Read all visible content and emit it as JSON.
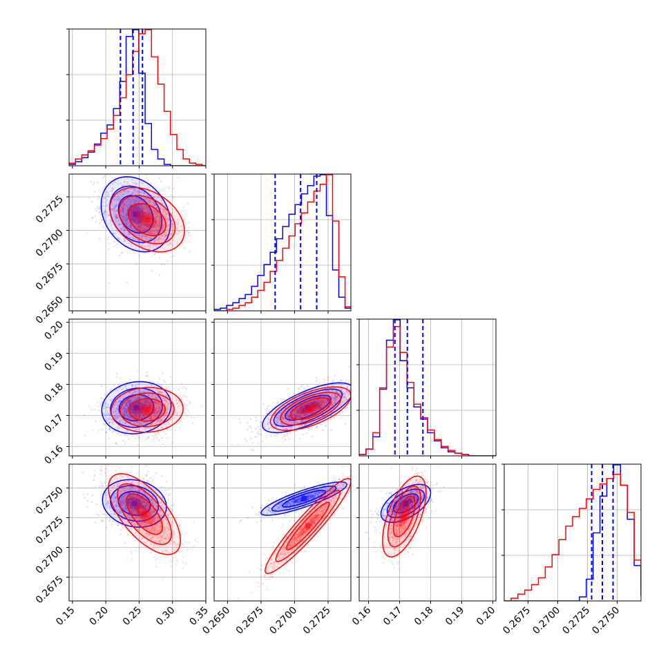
{
  "chart_data": {
    "type": "corner",
    "colors": {
      "blue": "#0000ff",
      "red": "#ff0000",
      "grid": "#b0b0b0"
    },
    "series": [
      {
        "color": "blue"
      },
      {
        "color": "red"
      }
    ],
    "params": [
      {
        "range": [
          0.145,
          0.35
        ],
        "ticks": [
          "0.15",
          "0.20",
          "0.25",
          "0.30",
          "0.35"
        ],
        "tick_values": [
          0.15,
          0.2,
          0.25,
          0.3,
          0.35
        ]
      },
      {
        "range": [
          0.264,
          0.2742
        ],
        "ticks": [
          "0.2650",
          "0.2675",
          "0.2700",
          "0.2725"
        ],
        "tick_values": [
          0.265,
          0.2675,
          0.27,
          0.2725
        ]
      },
      {
        "range": [
          0.157,
          0.201
        ],
        "ticks": [
          "0.16",
          "0.17",
          "0.18",
          "0.19",
          "0.20"
        ],
        "tick_values": [
          0.16,
          0.17,
          0.18,
          0.19,
          0.2
        ]
      },
      {
        "range": [
          0.2655,
          0.277
        ],
        "ticks": [
          "0.2675",
          "0.2700",
          "0.2725",
          "0.2750"
        ],
        "tick_values": [
          0.2675,
          0.27,
          0.2725,
          0.275
        ]
      }
    ],
    "marginals": [
      {
        "blue": {
          "edges_start": 0.145,
          "bin_width": 0.0095,
          "values": [
            0.01,
            0.03,
            0.06,
            0.1,
            0.16,
            0.24,
            0.3,
            0.42,
            0.62,
            0.95,
            1.0,
            0.68,
            0.31,
            0.12,
            0.05,
            0.01,
            0,
            0,
            0,
            0,
            0,
            0
          ]
        },
        "red": {
          "edges_start": 0.145,
          "bin_width": 0.0095,
          "values": [
            0.02,
            0.05,
            0.08,
            0.11,
            0.15,
            0.2,
            0.27,
            0.37,
            0.5,
            0.67,
            0.84,
            0.97,
            1.0,
            0.8,
            0.6,
            0.4,
            0.23,
            0.12,
            0.05,
            0.02,
            0.01,
            0
          ]
        },
        "quantile_lines": [
          0.222,
          0.241,
          0.255
        ]
      },
      {
        "blue": {
          "edges_start": 0.264,
          "bin_width": 0.000465,
          "values": [
            0.01,
            0.02,
            0.04,
            0.06,
            0.09,
            0.12,
            0.18,
            0.26,
            0.34,
            0.43,
            0.53,
            0.62,
            0.71,
            0.78,
            0.86,
            0.92,
            0.99,
            1.0,
            0.7,
            0.3,
            0.1,
            0.02
          ]
        },
        "red": {
          "edges_start": 0.264,
          "bin_width": 0.000465,
          "values": [
            0,
            0,
            0.01,
            0.02,
            0.04,
            0.06,
            0.1,
            0.15,
            0.21,
            0.29,
            0.37,
            0.46,
            0.55,
            0.64,
            0.72,
            0.8,
            0.88,
            0.93,
            1.0,
            0.66,
            0.25,
            0.03
          ]
        },
        "quantile_lines": [
          0.26855,
          0.27045,
          0.27165
        ]
      },
      {
        "blue": {
          "edges_start": 0.157,
          "bin_width": 0.0022,
          "values": [
            0.01,
            0.05,
            0.14,
            0.49,
            0.85,
            1.0,
            0.7,
            0.5,
            0.36,
            0.27,
            0.17,
            0.11,
            0.06,
            0.03,
            0.02,
            0.01,
            0,
            0,
            0,
            0
          ]
        },
        "red": {
          "edges_start": 0.157,
          "bin_width": 0.0022,
          "values": [
            0.01,
            0.05,
            0.17,
            0.5,
            0.8,
            0.95,
            0.76,
            0.54,
            0.38,
            0.28,
            0.19,
            0.12,
            0.07,
            0.04,
            0.02,
            0.01,
            0,
            0,
            0,
            0
          ]
        },
        "quantile_lines": [
          0.1685,
          0.1725,
          0.1775
        ]
      },
      {
        "blue": {
          "edges_start": 0.2655,
          "bin_width": 0.000575,
          "values": [
            0,
            0,
            0,
            0,
            0,
            0,
            0,
            0,
            0,
            0,
            0,
            0.03,
            0.16,
            0.5,
            0.77,
            0.9,
            1.0,
            0.85,
            0.6,
            0.26,
            0.04,
            0
          ]
        },
        "red": {
          "edges_start": 0.2655,
          "bin_width": 0.000575,
          "values": [
            0,
            0.02,
            0.05,
            0.08,
            0.12,
            0.17,
            0.25,
            0.34,
            0.45,
            0.55,
            0.62,
            0.68,
            0.75,
            0.82,
            0.86,
            0.9,
            0.93,
            0.85,
            0.65,
            0.3,
            0.1,
            0.01
          ]
        },
        "quantile_lines": [
          0.27285,
          0.27375,
          0.27465
        ]
      }
    ],
    "joint": [
      {
        "row": 1,
        "col": 0,
        "blue": {
          "mean": [
            0.245,
            0.2712
          ],
          "sd": [
            0.026,
            0.0014
          ],
          "rho": -0.25
        },
        "red": {
          "mean": [
            0.262,
            0.2708
          ],
          "sd": [
            0.028,
            0.0012
          ],
          "rho": -0.35
        }
      },
      {
        "row": 2,
        "col": 0,
        "blue": {
          "mean": [
            0.246,
            0.1725
          ],
          "sd": [
            0.026,
            0.0042
          ],
          "rho": 0.1
        },
        "red": {
          "mean": [
            0.262,
            0.1718
          ],
          "sd": [
            0.027,
            0.0036
          ],
          "rho": 0.05
        }
      },
      {
        "row": 2,
        "col": 1,
        "blue": {
          "mean": [
            0.271,
            0.1725
          ],
          "sd": [
            0.0017,
            0.004
          ],
          "rho": 0.7
        },
        "red": {
          "mean": [
            0.2712,
            0.1722
          ],
          "sd": [
            0.0015,
            0.0035
          ],
          "rho": 0.6
        }
      },
      {
        "row": 3,
        "col": 0,
        "blue": {
          "mean": [
            0.243,
            0.2737
          ],
          "sd": [
            0.024,
            0.001
          ],
          "rho": -0.15
        },
        "red": {
          "mean": [
            0.258,
            0.2728
          ],
          "sd": [
            0.027,
            0.0017
          ],
          "rho": -0.65
        }
      },
      {
        "row": 3,
        "col": 1,
        "blue": {
          "mean": [
            0.2707,
            0.2741
          ],
          "sd": [
            0.0016,
            0.0007
          ],
          "rho": 0.85
        },
        "red": {
          "mean": [
            0.271,
            0.2718
          ],
          "sd": [
            0.0016,
            0.002
          ],
          "rho": 0.94
        }
      },
      {
        "row": 3,
        "col": 2,
        "blue": {
          "mean": [
            0.172,
            0.2737
          ],
          "sd": [
            0.004,
            0.0008
          ],
          "rho": 0.55
        },
        "red": {
          "mean": [
            0.1715,
            0.2726
          ],
          "sd": [
            0.0035,
            0.0017
          ],
          "rho": 0.6
        }
      }
    ]
  }
}
